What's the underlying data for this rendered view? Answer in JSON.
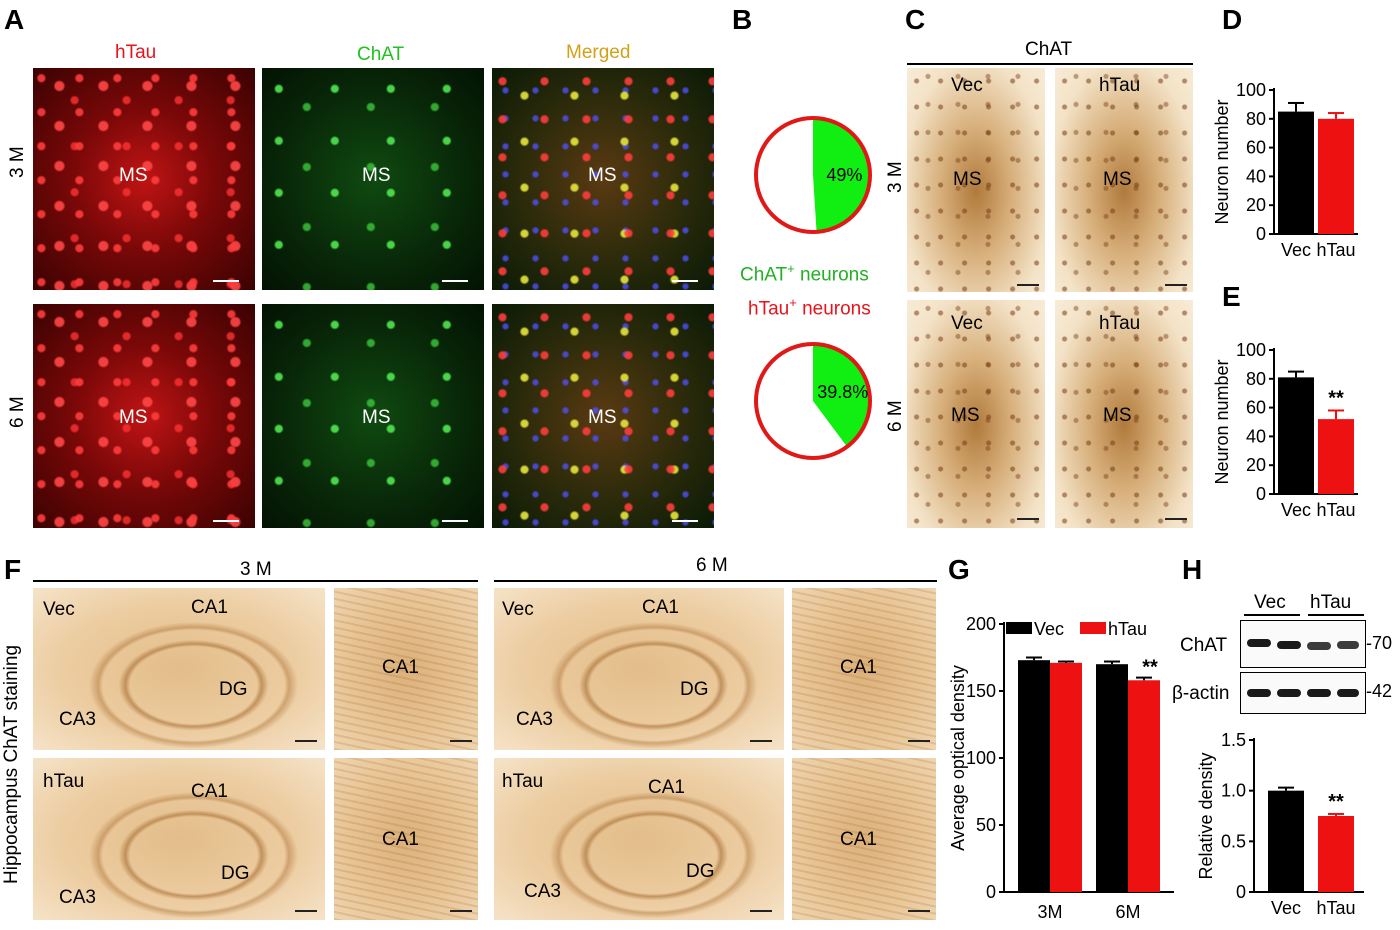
{
  "panel_letters": {
    "A": "A",
    "B": "B",
    "C": "C",
    "D": "D",
    "E": "E",
    "F": "F",
    "G": "G",
    "H": "H"
  },
  "panelA": {
    "columns": [
      {
        "label": "hTau",
        "color": "#e8141c"
      },
      {
        "label": "ChAT",
        "color": "#22c022"
      },
      {
        "label": "Merged",
        "color": "#d4a017"
      }
    ],
    "rows": [
      "3 M",
      "6 M"
    ],
    "region_label": "MS"
  },
  "panelB": {
    "legend_line1": "ChAT",
    "legend_line1_sup": "+",
    "legend_line1_tail": " neurons",
    "legend_line2": "hTau",
    "legend_line2_sup": "+",
    "legend_line2_tail": " neurons",
    "rows": [
      "3 M",
      "6 M"
    ],
    "colors": {
      "slice": "#11ee11",
      "ring": "#e01818",
      "rest": "#ffffff"
    }
  },
  "panelC": {
    "header": "ChAT",
    "columns": [
      "Vec",
      "hTau"
    ],
    "rows": [
      "3 M",
      "6 M"
    ],
    "region_label": "MS"
  },
  "panelF": {
    "side_label": "Hippocampus ChAT staining",
    "groups": [
      "3 M",
      "6 M"
    ],
    "row_labels": [
      "Vec",
      "hTau"
    ],
    "regions": {
      "ca1": "CA1",
      "ca3": "CA3",
      "dg": "DG"
    }
  },
  "panelH": {
    "blot_groups": [
      "Vec",
      "hTau"
    ],
    "blot_rows": [
      {
        "label": "ChAT",
        "marker": "-70"
      },
      {
        "label": "β-actin",
        "marker": "-42"
      }
    ]
  },
  "colors": {
    "vec": "#000000",
    "htau": "#ee1111"
  },
  "chart_data": [
    {
      "id": "B-3M",
      "type": "pie",
      "values": [
        49,
        51
      ],
      "labels": [
        "49%",
        ""
      ]
    },
    {
      "id": "B-6M",
      "type": "pie",
      "values": [
        39.8,
        60.2
      ],
      "labels": [
        "39.8%",
        ""
      ]
    },
    {
      "id": "D",
      "type": "bar",
      "categories": [
        "Vec",
        "hTau"
      ],
      "values": [
        85,
        80
      ],
      "errors": [
        6,
        4
      ],
      "ylabel": "Neuron number",
      "ylim": [
        0,
        100
      ],
      "yticks": [
        "0",
        "20",
        "40",
        "60",
        "80",
        "100"
      ],
      "annotations": []
    },
    {
      "id": "E",
      "type": "bar",
      "categories": [
        "Vec",
        "hTau"
      ],
      "values": [
        81,
        52
      ],
      "errors": [
        4,
        6
      ],
      "ylabel": "Neuron number",
      "ylim": [
        0,
        100
      ],
      "yticks": [
        "0",
        "20",
        "40",
        "60",
        "80",
        "100"
      ],
      "annotations": [
        "",
        "**"
      ]
    },
    {
      "id": "G",
      "type": "bar",
      "categories": [
        "3M",
        "6M"
      ],
      "series": [
        {
          "name": "Vec",
          "values": [
            173,
            170
          ],
          "errors": [
            2,
            2
          ]
        },
        {
          "name": "hTau",
          "values": [
            171,
            158
          ],
          "errors": [
            1,
            2
          ]
        }
      ],
      "annotations": [
        "",
        "**"
      ],
      "ylabel": "Average optical density",
      "ylim": [
        0,
        200
      ],
      "yticks": [
        "0",
        "50",
        "100",
        "150",
        "200"
      ],
      "legend": "top"
    },
    {
      "id": "H",
      "type": "bar",
      "categories": [
        "Vec",
        "hTau"
      ],
      "values": [
        1.0,
        0.75
      ],
      "errors": [
        0.03,
        0.02
      ],
      "ylabel": "Relative density",
      "ylim": [
        0,
        1.5
      ],
      "yticks": [
        "0",
        "0.5",
        "1.0",
        "1.5"
      ],
      "annotations": [
        "",
        "**"
      ]
    }
  ]
}
